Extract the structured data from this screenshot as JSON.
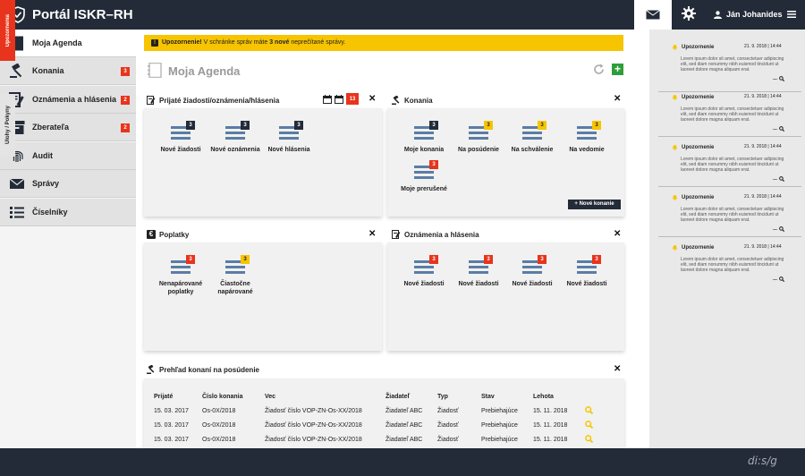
{
  "app": {
    "title": "Portál ISKR–RH",
    "user_name": "Ján Johanides"
  },
  "sidebar": {
    "items": [
      {
        "label": "Moja Agenda",
        "icon": "agenda-icon",
        "badge": ""
      },
      {
        "label": "Konania",
        "icon": "gavel-icon",
        "badge": "3"
      },
      {
        "label": "Oznámenia a hlásenia",
        "icon": "document-edit-icon",
        "badge": "2"
      },
      {
        "label": "Zberateľa",
        "icon": "archive-box-icon",
        "badge": "2"
      },
      {
        "label": "Audit",
        "icon": "fingerprint-icon",
        "badge": ""
      },
      {
        "label": "Správy",
        "icon": "mail-icon",
        "badge": ""
      },
      {
        "label": "Číselníky",
        "icon": "list-icon",
        "badge": ""
      }
    ]
  },
  "alert": {
    "prefix": "Upozornenie!",
    "text1": " V schránke správ máte ",
    "count": "3 nové",
    "text2": " neprečítané správy."
  },
  "page": {
    "title": "Moja Agenda"
  },
  "panels": {
    "prijate": {
      "title": "Prijaté žiadosti/oznámenia/hlásenia",
      "calendar_day": "13",
      "tiles": [
        {
          "label": "Nové žiadosti",
          "count": "3",
          "color": "dark"
        },
        {
          "label": "Nové oznámenia",
          "count": "3",
          "color": "dark"
        },
        {
          "label": "Nové hlásenia",
          "count": "3",
          "color": "dark"
        }
      ]
    },
    "konania": {
      "title": "Konania",
      "new_button": "+ Nové konanie",
      "tiles": [
        {
          "label": "Moje konania",
          "count": "3",
          "color": "dark"
        },
        {
          "label": "Na posúdenie",
          "count": "3",
          "color": "yellow"
        },
        {
          "label": "Na schválenie",
          "count": "3",
          "color": "yellow"
        },
        {
          "label": "Na vedomie",
          "count": "3",
          "color": "yellow"
        },
        {
          "label": "Moje prerušené",
          "count": "3",
          "color": "red"
        }
      ]
    },
    "poplatky": {
      "title": "Poplatky",
      "tiles": [
        {
          "label": "Nenapárované poplatky",
          "count": "3",
          "color": "red"
        },
        {
          "label": "Čiastočne napárované",
          "count": "3",
          "color": "yellow"
        }
      ]
    },
    "oznamenia": {
      "title": "Oznámenia a hlásenia",
      "tiles": [
        {
          "label": "Nové žiadosti",
          "count": "3",
          "color": "red"
        },
        {
          "label": "Nové žiadosti",
          "count": "3",
          "color": "red"
        },
        {
          "label": "Nové žiadosti",
          "count": "3",
          "color": "red"
        },
        {
          "label": "Nové žiadosti",
          "count": "3",
          "color": "red"
        }
      ]
    },
    "prehlad": {
      "title": "Prehľad konaní na posúdenie",
      "columns": [
        "Prijaté",
        "Číslo konania",
        "Vec",
        "Žiadateľ",
        "Typ",
        "Stav",
        "Lehota"
      ],
      "rows": [
        [
          "15. 03. 2017",
          "Os-0X/2018",
          "Žiadosť číslo VOP-ZN-Os-XX/2018",
          "Žiadateľ ABC",
          "Žiadosť",
          "Prebiehajúce",
          "15. 11. 2018"
        ],
        [
          "15. 03. 2017",
          "Os-0X/2018",
          "Žiadosť číslo VOP-ZN-Os-XX/2018",
          "Žiadateľ ABC",
          "Žiadosť",
          "Prebiehajúce",
          "15. 11. 2018"
        ],
        [
          "15. 03. 2017",
          "Os-0X/2018",
          "Žiadosť číslo VOP-ZN-Os-XX/2018",
          "Žiadateľ ABC",
          "Žiadosť",
          "Prebiehajúce",
          "15. 11. 2018"
        ]
      ]
    }
  },
  "right_tabs": {
    "tab1": "Upozornenia",
    "tab2": "Úlohy / Pokyny"
  },
  "notifications": [
    {
      "title": "Upozornenie",
      "date": "21. 9. 2018 | 14:44",
      "body": "Lorem ipsum dolor sit amet, consectetuer adipiscing elit, sed diam nonummy nibh euismod tincidunt ut laoreet dolore magna aliquam erat.",
      "more": "..."
    },
    {
      "title": "Upozornenie",
      "date": "21. 9. 2018 | 14:44",
      "body": "Lorem ipsum dolor sit amet, consectetuer adipiscing elit, sed diam nonummy nibh euismod tincidunt ut laoreet dolore magna aliquam erat.",
      "more": "..."
    },
    {
      "title": "Upozornenie",
      "date": "21. 9. 2018 | 14:44",
      "body": "Lorem ipsum dolor sit amet, consectetuer adipiscing elit, sed diam nonummy nibh euismod tincidunt ut laoreet dolore magna aliquam erat.",
      "more": "..."
    },
    {
      "title": "Upozornenie",
      "date": "21. 9. 2018 | 14:44",
      "body": "Lorem ipsum dolor sit amet, consectetuer adipiscing elit, sed diam nonummy nibh euismod tincidunt ut laoreet dolore magna aliquam erat.",
      "more": "..."
    },
    {
      "title": "Upozornenie",
      "date": "21. 9. 2018 | 14:44",
      "body": "Lorem ipsum dolor sit amet, consectetuer adipiscing elit, sed diam nonummy nibh euismod tincidunt ut laoreet dolore magna aliquam erat.",
      "more": "..."
    }
  ],
  "footer": {
    "brand": "di:s/g"
  },
  "colors": {
    "navy": "#232b38",
    "red": "#e8341c",
    "yellow": "#f7c400",
    "green": "#2e9e3a",
    "tile_blue": "#5a7da4"
  }
}
